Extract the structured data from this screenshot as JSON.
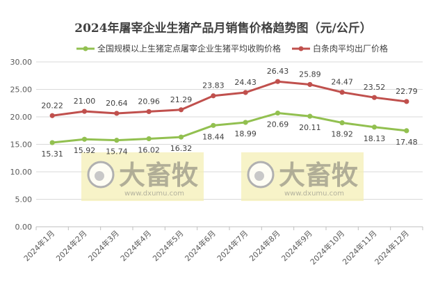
{
  "chart_data": {
    "type": "line",
    "title": "2024年屠宰企业生猪产品月销售价格趋势图（元/公斤）",
    "categories": [
      "2024年1月",
      "2024年2月",
      "2024年3月",
      "2024年4月",
      "2024年5月",
      "2024年6月",
      "2024年7月",
      "2024年8月",
      "2024年9月",
      "2024年10月",
      "2024年11月",
      "2024年12月"
    ],
    "series": [
      {
        "name": "全国规模以上生猪定点屠宰企业生猪平均收购价格",
        "color": "#92c050",
        "values": [
          15.31,
          15.92,
          15.74,
          16.02,
          16.32,
          18.44,
          18.99,
          20.69,
          20.11,
          18.92,
          18.13,
          17.48
        ],
        "labels": [
          "15.31",
          "15.92",
          "15.74",
          "16.02",
          "16.32",
          "18.44",
          "18.99",
          "20.69",
          "20.11",
          "18.92",
          "18.13",
          "17.48"
        ]
      },
      {
        "name": "白条肉平均出厂价格",
        "color": "#c0504d",
        "values": [
          20.22,
          21.0,
          20.64,
          20.96,
          21.29,
          23.83,
          24.43,
          26.43,
          25.89,
          24.47,
          23.52,
          22.79
        ],
        "labels": [
          "20.22",
          "21.00",
          "20.64",
          "20.96",
          "21.29",
          "23.83",
          "24.43",
          "26.43",
          "25.89",
          "24.47",
          "23.52",
          "22.79"
        ]
      }
    ],
    "ylim": [
      0,
      30
    ],
    "yticks": [
      "0.00",
      "5.00",
      "10.00",
      "15.00",
      "20.00",
      "25.00",
      "30.00"
    ],
    "grid": true,
    "legend": "top",
    "watermark": {
      "text_cn": "大畜牧",
      "text_url": "www.dxumu.com",
      "color": "#f3eeb0"
    }
  }
}
